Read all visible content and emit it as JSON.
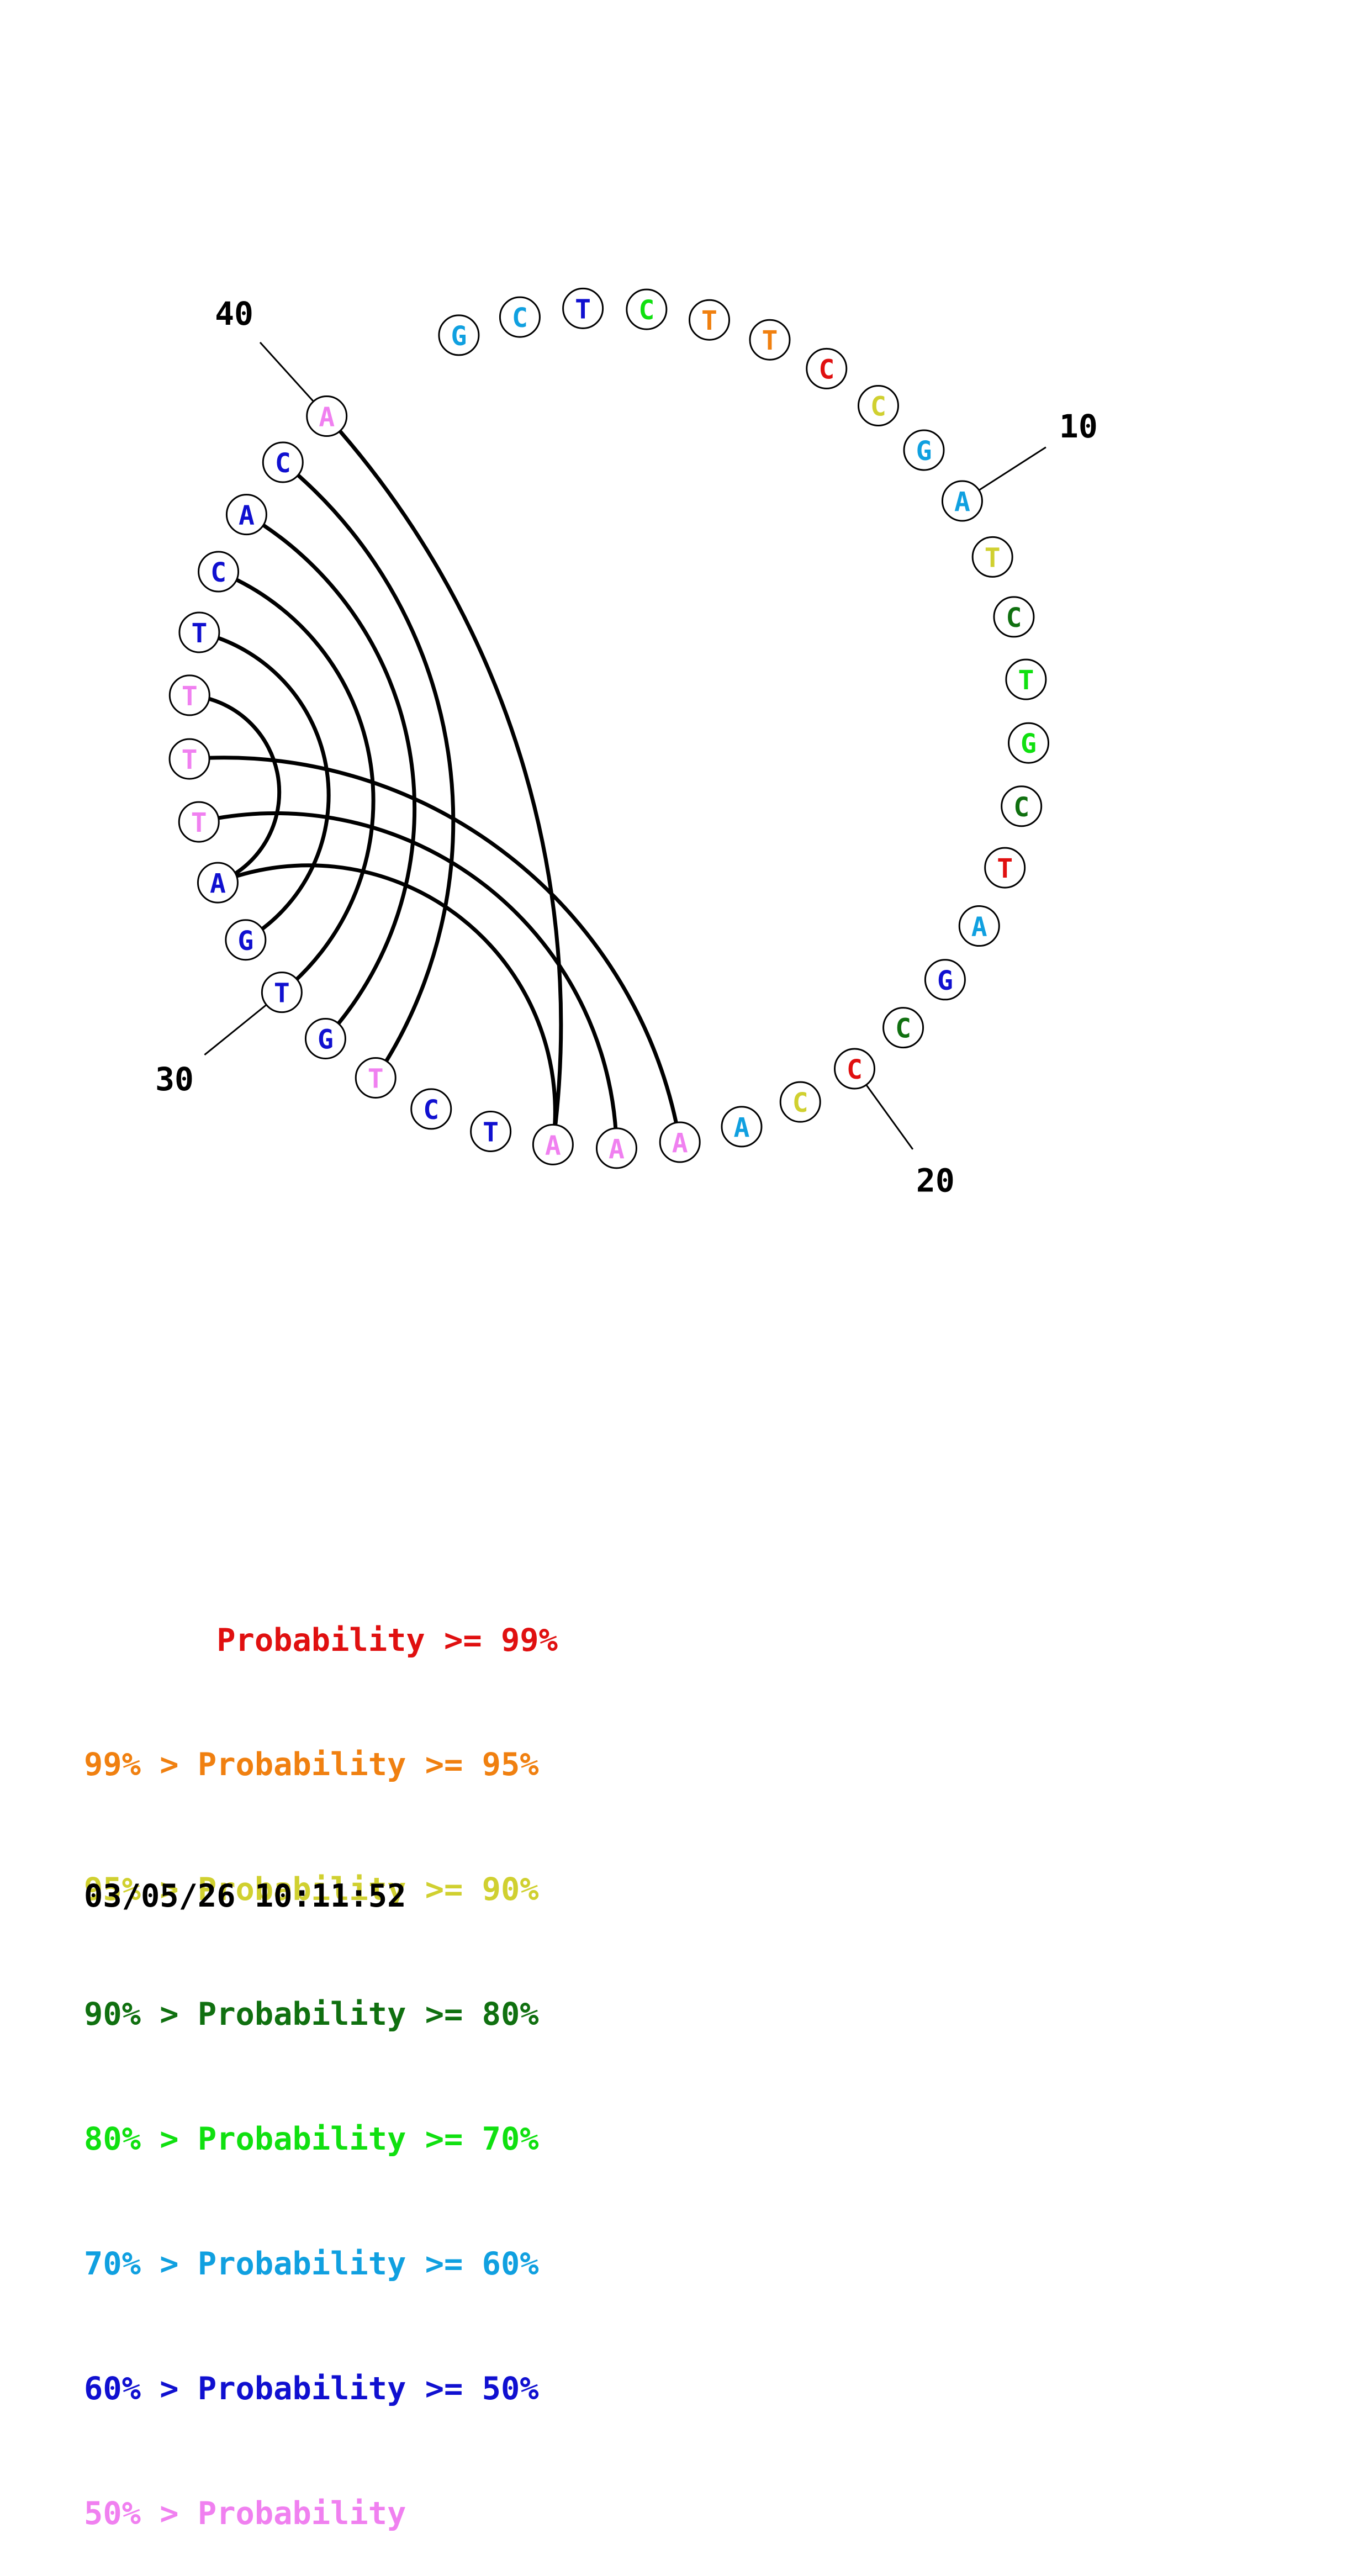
{
  "colors": {
    "p99": "#e01010",
    "p95": "#f08010",
    "p90": "#d0d030",
    "p80": "#107010",
    "p70": "#10e010",
    "p60": "#10a0e0",
    "p50": "#1010d0",
    "plow": "#f080f0"
  },
  "sequence": [
    {
      "base": "G",
      "color": "p60"
    },
    {
      "base": "C",
      "color": "p60"
    },
    {
      "base": "T",
      "color": "p50"
    },
    {
      "base": "C",
      "color": "p70"
    },
    {
      "base": "T",
      "color": "p95"
    },
    {
      "base": "T",
      "color": "p95"
    },
    {
      "base": "C",
      "color": "p99"
    },
    {
      "base": "C",
      "color": "p90"
    },
    {
      "base": "G",
      "color": "p60"
    },
    {
      "base": "A",
      "color": "p60"
    },
    {
      "base": "T",
      "color": "p90"
    },
    {
      "base": "C",
      "color": "p80"
    },
    {
      "base": "T",
      "color": "p70"
    },
    {
      "base": "G",
      "color": "p70"
    },
    {
      "base": "C",
      "color": "p80"
    },
    {
      "base": "T",
      "color": "p99"
    },
    {
      "base": "A",
      "color": "p60"
    },
    {
      "base": "G",
      "color": "p50"
    },
    {
      "base": "C",
      "color": "p80"
    },
    {
      "base": "C",
      "color": "p99"
    },
    {
      "base": "C",
      "color": "p90"
    },
    {
      "base": "A",
      "color": "p60"
    },
    {
      "base": "A",
      "color": "plow"
    },
    {
      "base": "A",
      "color": "plow"
    },
    {
      "base": "A",
      "color": "plow"
    },
    {
      "base": "T",
      "color": "p50"
    },
    {
      "base": "C",
      "color": "p50"
    },
    {
      "base": "T",
      "color": "plow"
    },
    {
      "base": "G",
      "color": "p50"
    },
    {
      "base": "T",
      "color": "p50"
    },
    {
      "base": "G",
      "color": "p50"
    },
    {
      "base": "A",
      "color": "p50"
    },
    {
      "base": "T",
      "color": "plow"
    },
    {
      "base": "T",
      "color": "plow"
    },
    {
      "base": "T",
      "color": "plow"
    },
    {
      "base": "T",
      "color": "p50"
    },
    {
      "base": "C",
      "color": "p50"
    },
    {
      "base": "A",
      "color": "p50"
    },
    {
      "base": "C",
      "color": "p50"
    },
    {
      "base": "A",
      "color": "plow"
    }
  ],
  "pairs": [
    [
      40,
      25
    ],
    [
      39,
      28
    ],
    [
      38,
      29
    ],
    [
      37,
      30
    ],
    [
      36,
      31
    ],
    [
      35,
      32
    ],
    [
      34,
      23
    ],
    [
      33,
      24
    ],
    [
      32,
      25
    ]
  ],
  "index_labels": [
    "10",
    "20",
    "30",
    "40"
  ],
  "legend": [
    {
      "text": "       Probability >= 99%",
      "color": "p99"
    },
    {
      "text": "99% > Probability >= 95%",
      "color": "p95"
    },
    {
      "text": "95% > Probability >= 90%",
      "color": "p90"
    },
    {
      "text": "90% > Probability >= 80%",
      "color": "p80"
    },
    {
      "text": "80% > Probability >= 70%",
      "color": "p70"
    },
    {
      "text": "70% > Probability >= 60%",
      "color": "p60"
    },
    {
      "text": "60% > Probability >= 50%",
      "color": "p50"
    },
    {
      "text": "50% > Probability",
      "color": "plow"
    }
  ],
  "timestamp": "03/05/26 10:11:52"
}
